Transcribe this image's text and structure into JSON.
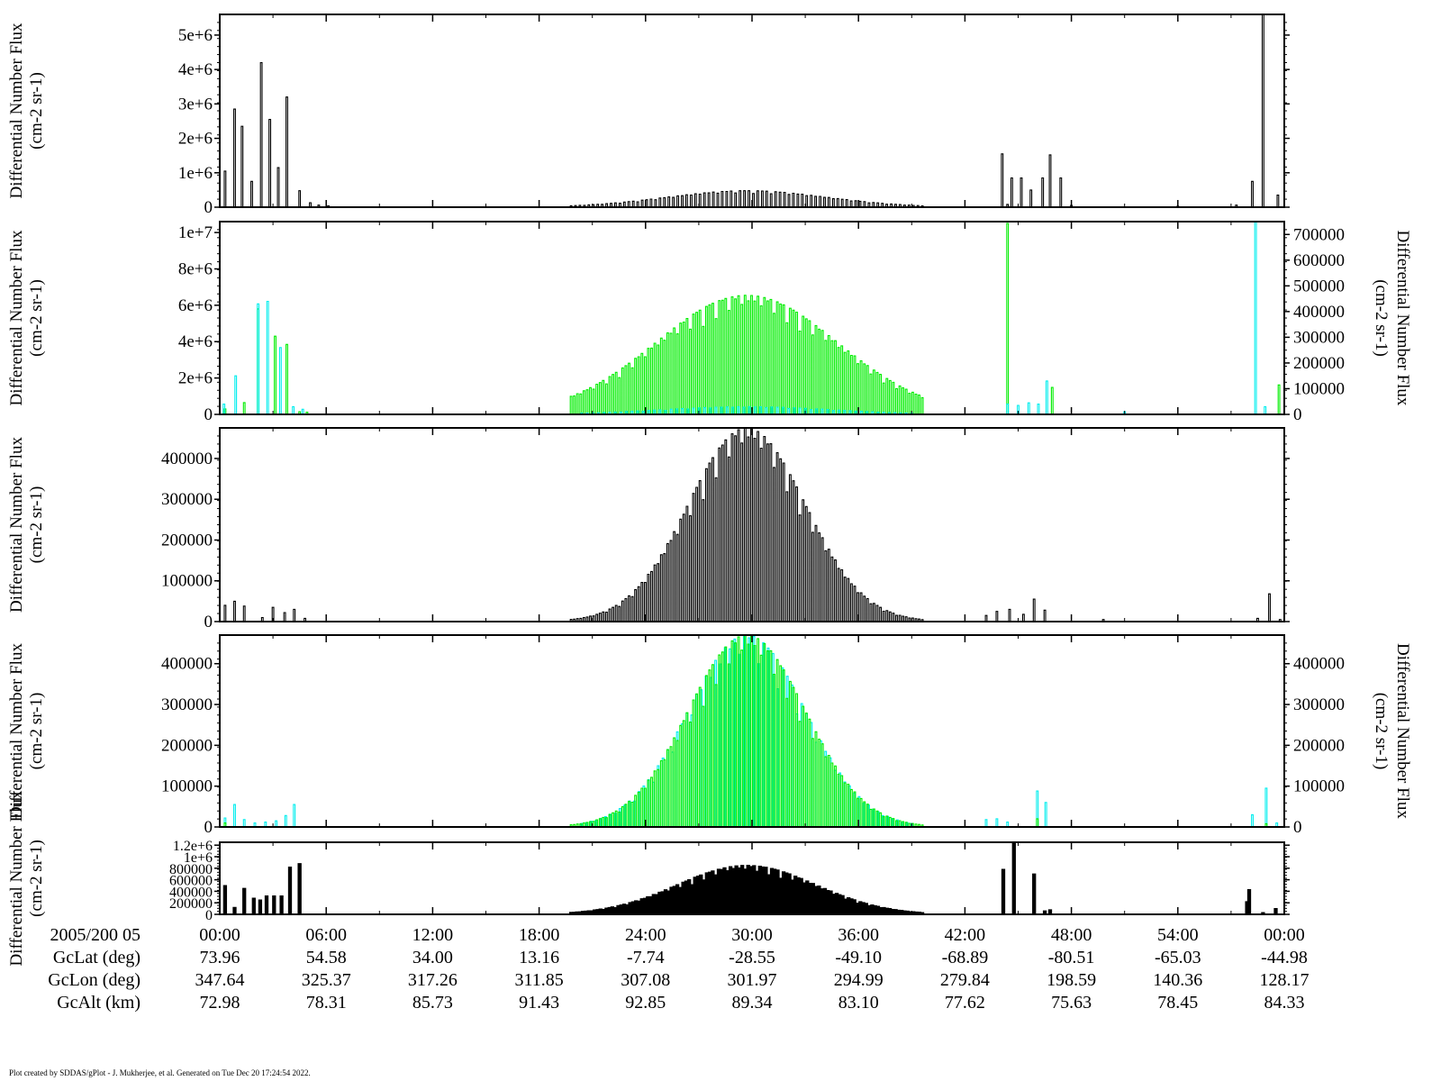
{
  "colors": {
    "black": "#000000",
    "green": "#00ee00",
    "cyan": "#00eeee",
    "axis": "#000000"
  },
  "time_axis": {
    "start_label": "2005/200 05",
    "ticks": [
      "00:00",
      "06:00",
      "12:00",
      "18:00",
      "24:00",
      "30:00",
      "36:00",
      "42:00",
      "48:00",
      "54:00",
      "00:00"
    ],
    "tick_minutes": [
      0,
      6,
      12,
      18,
      24,
      30,
      36,
      42,
      48,
      54,
      60
    ]
  },
  "ephemeris": [
    {
      "label": "GcLat (deg)",
      "values": [
        "73.96",
        "54.58",
        "34.00",
        "13.16",
        "-7.74",
        "-28.55",
        "-49.10",
        "-68.89",
        "-80.51",
        "-65.03",
        "-44.98"
      ]
    },
    {
      "label": "GcLon (deg)",
      "values": [
        "347.64",
        "325.37",
        "317.26",
        "311.85",
        "307.08",
        "301.97",
        "294.99",
        "279.84",
        "198.59",
        "140.36",
        "128.17"
      ]
    },
    {
      "label": "GcAlt (km)",
      "values": [
        "72.98",
        "78.31",
        "85.73",
        "91.43",
        "92.85",
        "89.34",
        "83.10",
        "77.62",
        "75.63",
        "78.45",
        "84.33"
      ]
    }
  ],
  "footer": "Plot created by SDDAS/gPlot - J. Mukherjee, et al.  Generated on Tue Dec 20 17:24:54 2022.",
  "chart_data": [
    {
      "type": "line",
      "panel": 1,
      "ylabel": "Differential Number Flux",
      "yunit": "(cm-2 sr-1)",
      "ylim": [
        0,
        5600000
      ],
      "yticks": [
        0,
        1000000,
        2000000,
        3000000,
        4000000,
        5000000
      ],
      "ytick_labels": [
        "0",
        "1e+6",
        "2e+6",
        "3e+6",
        "4e+6",
        "5e+6"
      ],
      "series": [
        {
          "color": "black",
          "spikes": [
            [
              0.5,
              1050000
            ],
            [
              1.4,
              2850000
            ],
            [
              2.1,
              2350000
            ],
            [
              3.0,
              750000
            ],
            [
              3.9,
              4200000
            ],
            [
              4.7,
              2550000
            ],
            [
              5.5,
              1150000
            ],
            [
              6.3,
              3200000
            ],
            [
              7.5,
              480000
            ],
            [
              8.5,
              130000
            ],
            [
              9.3,
              60000
            ],
            [
              10.2,
              40000
            ],
            [
              73.5,
              1550000
            ],
            [
              74.4,
              850000
            ],
            [
              75.3,
              850000
            ],
            [
              76.2,
              500000
            ],
            [
              77.3,
              850000
            ],
            [
              78.0,
              1520000
            ],
            [
              79.0,
              850000
            ],
            [
              74.0,
              80000
            ],
            [
              80.0,
              50000
            ],
            [
              90.0,
              30000
            ],
            [
              95.5,
              60000
            ],
            [
              97.0,
              750000
            ],
            [
              98.0,
              5600000
            ],
            [
              99.4,
              350000
            ]
          ],
          "hump": {
            "center": 49.5,
            "width": 7.5,
            "peak": 480000,
            "count": 80,
            "from": 33,
            "to": 66
          }
        }
      ]
    },
    {
      "type": "line",
      "panel": 2,
      "ylabel": "Differential Number Flux",
      "yunit": "(cm-2 sr-1)",
      "ylim": [
        0,
        10600000
      ],
      "yticks": [
        0,
        2000000,
        4000000,
        6000000,
        8000000,
        10000000
      ],
      "ytick_labels": [
        "0",
        "2e+6",
        "4e+6",
        "6e+6",
        "8e+6",
        "1e+7"
      ],
      "y2label": "Differential Number Flux",
      "y2unit": "(cm-2 sr-1)",
      "y2lim": [
        0,
        750000
      ],
      "y2ticks": [
        0,
        100000,
        200000,
        300000,
        400000,
        500000,
        600000,
        700000
      ],
      "y2tick_labels": [
        "0",
        "100000",
        "200000",
        "300000",
        "400000",
        "500000",
        "600000",
        "700000"
      ],
      "series": [
        {
          "color": "green",
          "axis": "left",
          "spikes": [
            [
              0.5,
              300000
            ],
            [
              2.3,
              650000
            ],
            [
              3.6,
              5800000
            ],
            [
              5.2,
              4300000
            ],
            [
              6.3,
              3850000
            ],
            [
              7.5,
              150000
            ],
            [
              8.2,
              120000
            ],
            [
              74.0,
              10500000
            ],
            [
              78.2,
              1480000
            ],
            [
              99.5,
              1620000
            ]
          ],
          "hump": {
            "center": 49.5,
            "width": 8.5,
            "peak": 6550000,
            "count": 110,
            "from": 33,
            "to": 66
          }
        },
        {
          "color": "cyan",
          "axis": "right",
          "spikes": [
            [
              0.4,
              40000
            ],
            [
              1.5,
              150000
            ],
            [
              3.6,
              430000
            ],
            [
              4.5,
              440000
            ],
            [
              5.7,
              260000
            ],
            [
              6.9,
              30000
            ],
            [
              7.8,
              20000
            ],
            [
              74.0,
              40000
            ],
            [
              75.0,
              35000
            ],
            [
              76.0,
              45000
            ],
            [
              76.9,
              40000
            ],
            [
              77.7,
              130000
            ],
            [
              97.3,
              750000
            ],
            [
              98.2,
              30000
            ],
            [
              85.0,
              10000
            ]
          ],
          "hump": {
            "center": 49.5,
            "width": 8.0,
            "peak": 30000,
            "count": 60,
            "from": 34,
            "to": 65
          }
        }
      ]
    },
    {
      "type": "line",
      "panel": 3,
      "ylabel": "Differential Number Flux",
      "yunit": "(cm-2 sr-1)",
      "ylim": [
        0,
        475000
      ],
      "yticks": [
        0,
        100000,
        200000,
        300000,
        400000
      ],
      "ytick_labels": [
        "0",
        "100000",
        "200000",
        "300000",
        "400000"
      ],
      "series": [
        {
          "color": "black",
          "spikes": [
            [
              0.5,
              40000
            ],
            [
              1.4,
              50000
            ],
            [
              2.3,
              38000
            ],
            [
              4.0,
              10000
            ],
            [
              5.0,
              35000
            ],
            [
              6.1,
              22000
            ],
            [
              7.0,
              30000
            ],
            [
              8.0,
              8000
            ],
            [
              72.0,
              15000
            ],
            [
              73.0,
              25000
            ],
            [
              74.2,
              30000
            ],
            [
              75.5,
              18000
            ],
            [
              76.5,
              55000
            ],
            [
              77.5,
              28000
            ],
            [
              83.0,
              5000
            ],
            [
              97.5,
              8000
            ],
            [
              98.6,
              68000
            ],
            [
              99.6,
              5000
            ]
          ],
          "hump": {
            "center": 49.5,
            "width": 5.5,
            "peak": 475000,
            "count": 110,
            "from": 33,
            "to": 66
          }
        }
      ]
    },
    {
      "type": "line",
      "panel": 4,
      "ylabel": "Differential Number Flux",
      "yunit": "(cm-2 sr-1)",
      "ylim": [
        0,
        470000
      ],
      "yticks": [
        0,
        100000,
        200000,
        300000,
        400000
      ],
      "ytick_labels": [
        "0",
        "100000",
        "200000",
        "300000",
        "400000"
      ],
      "y2label": "Differential Number Flux",
      "y2unit": "(cm-2 sr-1)",
      "y2lim": [
        0,
        470000
      ],
      "y2ticks": [
        0,
        100000,
        200000,
        300000,
        400000
      ],
      "y2tick_labels": [
        "0",
        "100000",
        "200000",
        "300000",
        "400000"
      ],
      "series": [
        {
          "color": "cyan",
          "axis": "right",
          "spikes": [
            [
              0.5,
              22000
            ],
            [
              1.4,
              55000
            ],
            [
              2.3,
              18000
            ],
            [
              3.3,
              10000
            ],
            [
              4.3,
              12000
            ],
            [
              5.3,
              15000
            ],
            [
              6.2,
              28000
            ],
            [
              7.0,
              55000
            ],
            [
              72.0,
              18000
            ],
            [
              73.0,
              20000
            ],
            [
              74.0,
              12000
            ],
            [
              76.8,
              88000
            ],
            [
              77.6,
              60000
            ],
            [
              97.0,
              30000
            ],
            [
              98.3,
              95000
            ],
            [
              99.3,
              10000
            ]
          ],
          "hump": {
            "center": 49.5,
            "width": 5.5,
            "peak": 470000,
            "count": 70,
            "from": 34,
            "to": 65
          }
        },
        {
          "color": "green",
          "axis": "left",
          "spikes": [
            [
              0.5,
              10000
            ],
            [
              76.8,
              20000
            ],
            [
              98.3,
              8000
            ]
          ],
          "hump": {
            "center": 49.5,
            "width": 5.5,
            "peak": 470000,
            "count": 110,
            "from": 33,
            "to": 66
          }
        }
      ]
    },
    {
      "type": "bar",
      "panel": 5,
      "ylabel": "Differential Number Flux",
      "yunit": "(cm-2 sr-1)",
      "ylim": [
        0,
        1250000
      ],
      "yticks": [
        0,
        200000,
        400000,
        600000,
        800000,
        1000000,
        1200000
      ],
      "ytick_labels": [
        "0",
        "200000",
        "400000",
        "600000",
        "800000",
        "1e+6",
        "1.2e+6"
      ],
      "series": [
        {
          "color": "black",
          "spikes": [
            [
              0.5,
              500000
            ],
            [
              1.4,
              120000
            ],
            [
              2.3,
              450000
            ],
            [
              3.2,
              280000
            ],
            [
              3.8,
              250000
            ],
            [
              4.4,
              320000
            ],
            [
              5.1,
              320000
            ],
            [
              5.8,
              320000
            ],
            [
              6.6,
              820000
            ],
            [
              7.5,
              880000
            ],
            [
              73.6,
              780000
            ],
            [
              74.6,
              1250000
            ],
            [
              76.5,
              700000
            ],
            [
              77.5,
              60000
            ],
            [
              78.0,
              80000
            ],
            [
              96.5,
              220000
            ],
            [
              96.7,
              430000
            ],
            [
              98.0,
              30000
            ],
            [
              99.2,
              100000
            ]
          ],
          "hump": {
            "center": 49.5,
            "width": 6.5,
            "peak": 850000,
            "count": 120,
            "from": 33,
            "to": 66
          }
        }
      ]
    }
  ]
}
